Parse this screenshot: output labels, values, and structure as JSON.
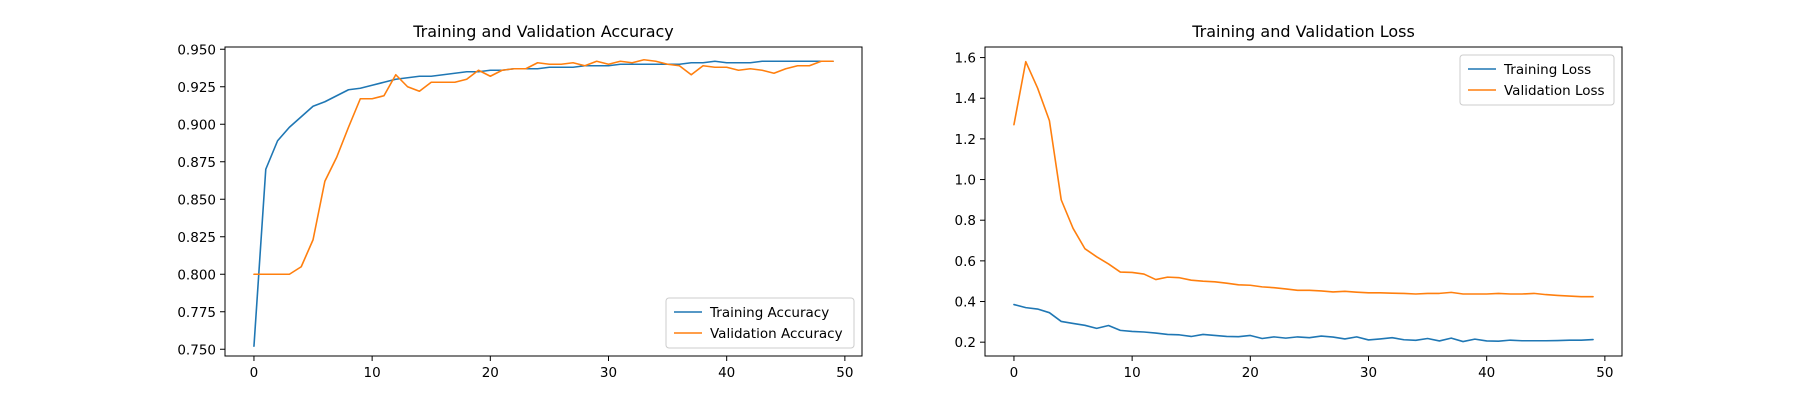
{
  "colors": {
    "training": "#1f77b4",
    "validation": "#ff7f0e"
  },
  "chart_data": [
    {
      "type": "line",
      "title": "Training and Validation Accuracy",
      "xlabel": "",
      "ylabel": "",
      "xlim": [
        -2.45,
        51.45
      ],
      "ylim": [
        0.7455,
        0.9515
      ],
      "xticks": [
        0,
        10,
        20,
        30,
        40,
        50
      ],
      "yticks": [
        0.75,
        0.775,
        0.8,
        0.825,
        0.85,
        0.875,
        0.9,
        0.925,
        0.95
      ],
      "ytick_labels": [
        "0.750",
        "0.775",
        "0.800",
        "0.825",
        "0.850",
        "0.875",
        "0.900",
        "0.925",
        "0.950"
      ],
      "legend_position": "lower-right",
      "grid": false,
      "x": [
        0,
        1,
        2,
        3,
        4,
        5,
        6,
        7,
        8,
        9,
        10,
        11,
        12,
        13,
        14,
        15,
        16,
        17,
        18,
        19,
        20,
        21,
        22,
        23,
        24,
        25,
        26,
        27,
        28,
        29,
        30,
        31,
        32,
        33,
        34,
        35,
        36,
        37,
        38,
        39,
        40,
        41,
        42,
        43,
        44,
        45,
        46,
        47,
        48,
        49
      ],
      "series": [
        {
          "name": "Training Accuracy",
          "color": "#1f77b4",
          "values": [
            0.752,
            0.87,
            0.889,
            0.898,
            0.905,
            0.912,
            0.915,
            0.919,
            0.923,
            0.924,
            0.926,
            0.928,
            0.93,
            0.931,
            0.932,
            0.932,
            0.933,
            0.934,
            0.935,
            0.935,
            0.936,
            0.936,
            0.937,
            0.937,
            0.937,
            0.938,
            0.938,
            0.938,
            0.939,
            0.939,
            0.939,
            0.94,
            0.94,
            0.94,
            0.94,
            0.94,
            0.94,
            0.941,
            0.941,
            0.942,
            0.941,
            0.941,
            0.941,
            0.942,
            0.942,
            0.942,
            0.942,
            0.942,
            0.942,
            0.942
          ]
        },
        {
          "name": "Validation Accuracy",
          "color": "#ff7f0e",
          "values": [
            0.8,
            0.8,
            0.8,
            0.8,
            0.805,
            0.823,
            0.862,
            0.878,
            0.898,
            0.917,
            0.917,
            0.919,
            0.933,
            0.925,
            0.922,
            0.928,
            0.928,
            0.928,
            0.93,
            0.936,
            0.932,
            0.936,
            0.937,
            0.937,
            0.941,
            0.94,
            0.94,
            0.941,
            0.939,
            0.942,
            0.94,
            0.942,
            0.941,
            0.943,
            0.942,
            0.94,
            0.939,
            0.933,
            0.939,
            0.938,
            0.938,
            0.936,
            0.937,
            0.936,
            0.934,
            0.937,
            0.939,
            0.939,
            0.942,
            0.942
          ]
        }
      ]
    },
    {
      "type": "line",
      "title": "Training and Validation Loss",
      "xlabel": "",
      "ylabel": "",
      "xlim": [
        -2.45,
        51.45
      ],
      "ylim": [
        0.132,
        1.652
      ],
      "xticks": [
        0,
        10,
        20,
        30,
        40,
        50
      ],
      "yticks": [
        0.2,
        0.4,
        0.6,
        0.8,
        1.0,
        1.2,
        1.4,
        1.6
      ],
      "ytick_labels": [
        "0.2",
        "0.4",
        "0.6",
        "0.8",
        "1.0",
        "1.2",
        "1.4",
        "1.6"
      ],
      "legend_position": "upper-right",
      "grid": false,
      "x": [
        0,
        1,
        2,
        3,
        4,
        5,
        6,
        7,
        8,
        9,
        10,
        11,
        12,
        13,
        14,
        15,
        16,
        17,
        18,
        19,
        20,
        21,
        22,
        23,
        24,
        25,
        26,
        27,
        28,
        29,
        30,
        31,
        32,
        33,
        34,
        35,
        36,
        37,
        38,
        39,
        40,
        41,
        42,
        43,
        44,
        45,
        46,
        47,
        48,
        49
      ],
      "series": [
        {
          "name": "Training Loss",
          "color": "#1f77b4",
          "values": [
            0.385,
            0.37,
            0.363,
            0.345,
            0.302,
            0.292,
            0.283,
            0.268,
            0.282,
            0.258,
            0.253,
            0.25,
            0.245,
            0.238,
            0.236,
            0.228,
            0.238,
            0.233,
            0.228,
            0.227,
            0.233,
            0.218,
            0.226,
            0.22,
            0.226,
            0.222,
            0.23,
            0.225,
            0.216,
            0.226,
            0.211,
            0.216,
            0.222,
            0.212,
            0.209,
            0.218,
            0.206,
            0.22,
            0.203,
            0.215,
            0.206,
            0.205,
            0.21,
            0.207,
            0.207,
            0.207,
            0.208,
            0.21,
            0.21,
            0.213
          ]
        },
        {
          "name": "Validation Loss",
          "color": "#ff7f0e",
          "values": [
            1.27,
            1.58,
            1.45,
            1.29,
            0.9,
            0.76,
            0.66,
            0.62,
            0.585,
            0.545,
            0.543,
            0.535,
            0.508,
            0.52,
            0.517,
            0.505,
            0.5,
            0.497,
            0.49,
            0.482,
            0.48,
            0.472,
            0.468,
            0.462,
            0.455,
            0.455,
            0.452,
            0.447,
            0.45,
            0.446,
            0.443,
            0.443,
            0.441,
            0.44,
            0.437,
            0.44,
            0.44,
            0.445,
            0.437,
            0.437,
            0.437,
            0.44,
            0.437,
            0.437,
            0.44,
            0.434,
            0.43,
            0.427,
            0.424,
            0.424
          ]
        }
      ]
    }
  ]
}
